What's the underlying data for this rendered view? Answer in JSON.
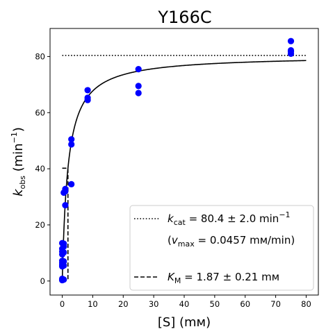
{
  "chart_data": {
    "type": "scatter",
    "title": "Y166C",
    "xlabel": "[S] (mм)",
    "ylabel": {
      "base": "k",
      "sub": "obs",
      "unit_pre": " (min",
      "unit_sup": "−1",
      "unit_post": ")"
    },
    "xlim": [
      -4,
      84
    ],
    "ylim": [
      -5,
      90
    ],
    "xticks": [
      0,
      10,
      20,
      30,
      40,
      50,
      60,
      70,
      80
    ],
    "yticks": [
      0,
      20,
      40,
      60,
      80
    ],
    "grid": false,
    "legend_position": "lower-right",
    "series": [
      {
        "kind": "points",
        "color": "#0000ff",
        "x": [
          0,
          0,
          0,
          0,
          0,
          0,
          0,
          0,
          0,
          0,
          0,
          0.5,
          0.5,
          0.5,
          0.5,
          0.5,
          0.5,
          0.5,
          1,
          1,
          1,
          3,
          3,
          3,
          8.33,
          8.33,
          8.33,
          25,
          25,
          25,
          75,
          75,
          75,
          75
        ],
        "y": [
          0.3,
          0.5,
          0.8,
          5.2,
          5.8,
          6.5,
          7.2,
          9.5,
          10.5,
          11.5,
          13.5,
          0.5,
          5.5,
          7,
          10.2,
          12.3,
          13.3,
          31.5,
          27,
          32,
          32.8,
          34.5,
          48.7,
          50.5,
          64.5,
          65.3,
          68,
          67,
          69.5,
          75.5,
          81,
          81.8,
          82.2,
          85.5
        ]
      },
      {
        "kind": "fit-curve",
        "color": "#000000",
        "model": "michaelis-menten",
        "kcat": 80.4,
        "KM": 1.87,
        "x_range": [
          0,
          80
        ]
      },
      {
        "kind": "hline",
        "name": "k_cat",
        "style": "dotted",
        "color": "#000000",
        "y": 80.4,
        "x_range": [
          0,
          80
        ]
      },
      {
        "kind": "km-marker",
        "name": "K_M",
        "style": "dashed",
        "color": "#000000",
        "x": 1.87,
        "y": 40.2
      }
    ],
    "legend": {
      "kcat": {
        "sym": "k",
        "sub": "cat",
        "text": " = 80.4 ± 2.0 min",
        "sup": "−1"
      },
      "vmax": {
        "pre": "(",
        "sym": "v",
        "sub": "max",
        "text": " = 0.0457 mм/min)"
      },
      "km": {
        "sym": "K",
        "sub": "M",
        "text": " = 1.87 ± 0.21 mм"
      }
    }
  }
}
